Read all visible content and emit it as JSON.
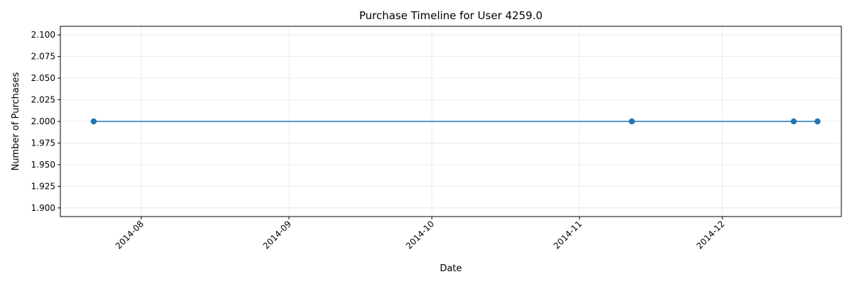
{
  "chart_data": {
    "type": "line",
    "title": "Purchase Timeline for User 4259.0",
    "xlabel": "Date",
    "ylabel": "Number of Purchases",
    "x_ticks": [
      "2014-08",
      "2014-09",
      "2014-10",
      "2014-11",
      "2014-12"
    ],
    "y_ticks": [
      "1.900",
      "1.925",
      "1.950",
      "1.975",
      "2.000",
      "2.025",
      "2.050",
      "2.075",
      "2.100"
    ],
    "xlim": [
      "2014-07-15",
      "2014-12-26"
    ],
    "ylim": [
      1.89,
      2.11
    ],
    "grid": true,
    "series": [
      {
        "color": "#1f77b4",
        "marker": "circle",
        "points": [
          {
            "x": "2014-07-22",
            "y": 2.0
          },
          {
            "x": "2014-11-12",
            "y": 2.0
          },
          {
            "x": "2014-12-16",
            "y": 2.0
          },
          {
            "x": "2014-12-21",
            "y": 2.0
          }
        ]
      }
    ]
  }
}
